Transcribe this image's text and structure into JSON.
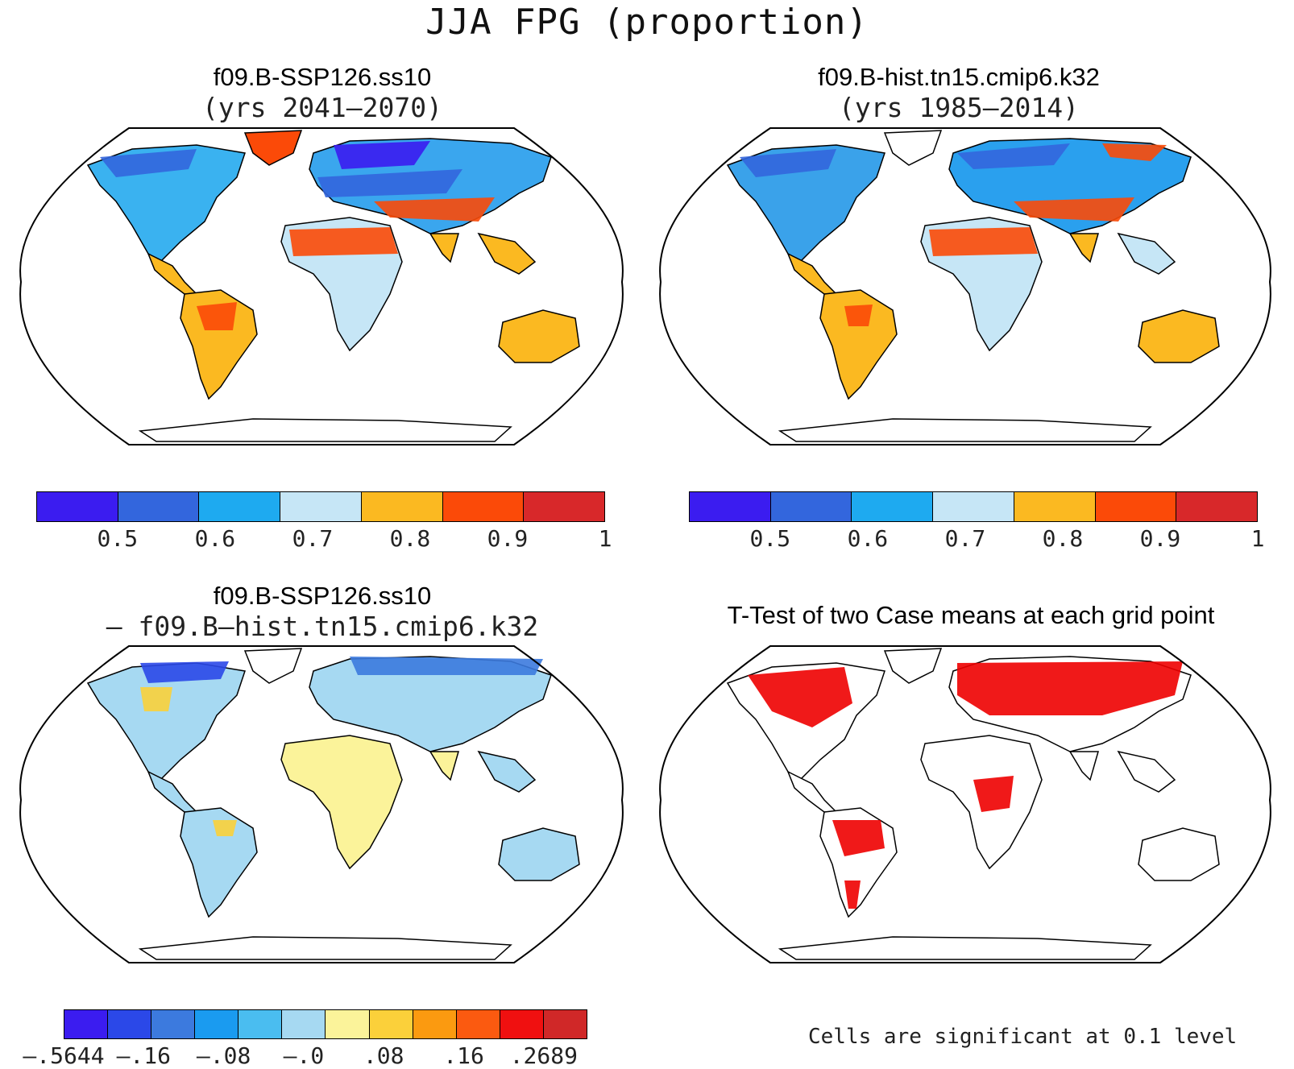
{
  "main_title": "JJA FPG (proportion)",
  "panels": [
    {
      "title": "f09.B-SSP126.ss10",
      "subtitle": "(yrs 2041–2070)"
    },
    {
      "title": "f09.B-hist.tn15.cmip6.k32",
      "subtitle": "(yrs 1985–2014)"
    },
    {
      "title": "f09.B-SSP126.ss10",
      "subtitle": "– f09.B–hist.tn15.cmip6.k32"
    },
    {
      "title": "T-Test of two Case means at each grid point",
      "subtitle": ""
    }
  ],
  "colorbar_abs": {
    "colors": [
      "#3b1cf0",
      "#3366dd",
      "#1eaaf0",
      "#c6e6f6",
      "#fbb921",
      "#fb4a08",
      "#d8282a"
    ],
    "labels": [
      "0.5",
      "0.6",
      "0.7",
      "0.8",
      "0.9",
      "1"
    ]
  },
  "colorbar_diff": {
    "colors": [
      "#3b1cf0",
      "#2b48e8",
      "#3c7ade",
      "#1a9bf0",
      "#4abdf0",
      "#a6d9f2",
      "#fbf39a",
      "#fbd03a",
      "#fb9a10",
      "#fb5a10",
      "#f01010",
      "#d02828"
    ],
    "labels": [
      "–.5644",
      "–.16",
      "–.08",
      "–.0",
      ".08",
      ".16",
      ".2689"
    ]
  },
  "significance_note": "Cells are significant at 0.1 level",
  "significance_color": "#ee0000"
}
